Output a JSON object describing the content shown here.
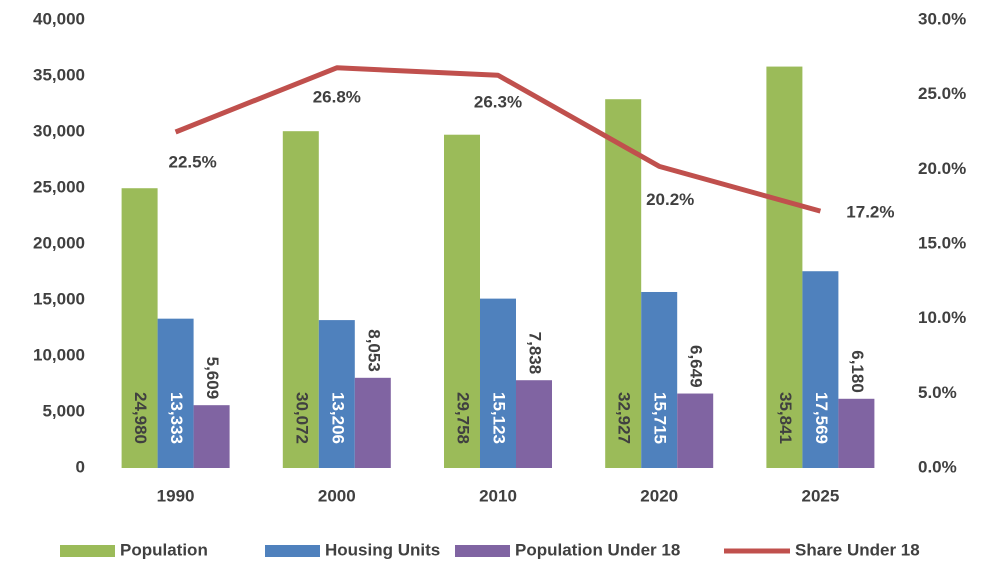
{
  "chart_data": {
    "type": "bar_line",
    "categories": [
      "1990",
      "2000",
      "2010",
      "2020",
      "2025"
    ],
    "series": [
      {
        "name": "Population",
        "color": "#9bbb59",
        "values": [
          24980,
          30072,
          29758,
          32927,
          35841
        ],
        "value_labels": [
          "24,980",
          "30,072",
          "29,758",
          "32,927",
          "35,841"
        ]
      },
      {
        "name": "Housing Units",
        "color": "#4f81bd",
        "values": [
          13333,
          13206,
          15123,
          15715,
          17569
        ],
        "value_labels": [
          "13,333",
          "13,206",
          "15,123",
          "15,715",
          "17,569"
        ]
      },
      {
        "name": "Population Under 18",
        "color": "#8064a2",
        "values": [
          5609,
          8053,
          7838,
          6649,
          6180
        ],
        "value_labels": [
          "5,609",
          "8,053",
          "7,838",
          "6,649",
          "6,180"
        ]
      },
      {
        "name": "Share Under 18",
        "color": "#c0504d",
        "type": "line",
        "axis": "y2",
        "values": [
          22.5,
          26.8,
          26.3,
          20.2,
          17.2
        ],
        "value_labels": [
          "22.5%",
          "26.8%",
          "26.3%",
          "20.2%",
          "17.2%"
        ]
      }
    ],
    "ylim": [
      0,
      40000
    ],
    "yticks": [
      0,
      {
        "value": 5000,
        "label": "5,000"
      },
      {
        "value": 10000,
        "label": "10,000"
      },
      {
        "value": 15000,
        "label": "15,000"
      },
      {
        "value": 20000,
        "label": "20,000"
      },
      {
        "value": 25000,
        "label": "25,000"
      },
      {
        "value": 30000,
        "label": "30,000"
      },
      {
        "value": 35000,
        "label": "35,000"
      },
      {
        "value": 40000,
        "label": "40,000"
      }
    ],
    "y2lim": [
      0,
      30
    ],
    "y2ticks": [
      {
        "value": 0,
        "label": "0.0%"
      },
      {
        "value": 5,
        "label": "5.0%"
      },
      {
        "value": 10,
        "label": "10.0%"
      },
      {
        "value": 15,
        "label": "15.0%"
      },
      {
        "value": 20,
        "label": "20.0%"
      },
      {
        "value": 25,
        "label": "25.0%"
      },
      {
        "value": 30,
        "label": "30.0%"
      }
    ],
    "grid": false,
    "legend": "bottom"
  }
}
